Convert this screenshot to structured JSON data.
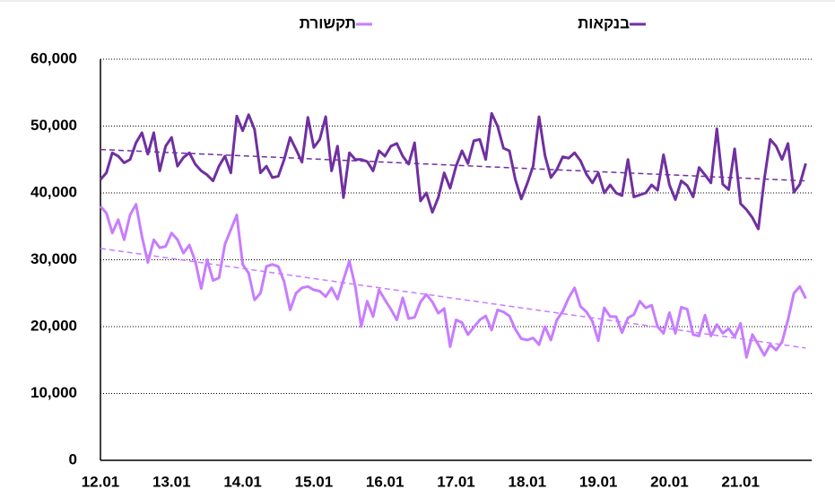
{
  "chart_data": {
    "type": "line",
    "categories": [
      "12.01",
      null,
      null,
      null,
      null,
      null,
      null,
      null,
      null,
      null,
      null,
      null,
      "13.01",
      null,
      null,
      null,
      null,
      null,
      null,
      null,
      null,
      null,
      null,
      null,
      "14.01",
      null,
      null,
      null,
      null,
      null,
      null,
      null,
      null,
      null,
      null,
      null,
      "15.01",
      null,
      null,
      null,
      null,
      null,
      null,
      null,
      null,
      null,
      null,
      null,
      "16.01",
      null,
      null,
      null,
      null,
      null,
      null,
      null,
      null,
      null,
      null,
      null,
      "17.01",
      null,
      null,
      null,
      null,
      null,
      null,
      null,
      null,
      null,
      null,
      null,
      "18.01",
      null,
      null,
      null,
      null,
      null,
      null,
      null,
      null,
      null,
      null,
      null,
      "19.01",
      null,
      null,
      null,
      null,
      null,
      null,
      null,
      null,
      null,
      null,
      null,
      "20.01",
      null,
      null,
      null,
      null,
      null,
      null,
      null,
      null,
      null,
      null,
      null,
      "21.01",
      null,
      null,
      null,
      null,
      null,
      null,
      null,
      null,
      null,
      null,
      null
    ],
    "series": [
      {
        "name": "בנקאות",
        "color": "#7030a0",
        "trend": [
          46500,
          41800
        ],
        "values": [
          42000,
          43000,
          46000,
          45500,
          44500,
          45000,
          47500,
          49000,
          45800,
          49000,
          43300,
          47000,
          48300,
          44000,
          45300,
          46000,
          44300,
          43300,
          42700,
          41800,
          44000,
          45500,
          43000,
          51500,
          49300,
          51700,
          49500,
          43000,
          44000,
          42300,
          42500,
          45000,
          48300,
          46500,
          44600,
          51300,
          46800,
          48000,
          51400,
          43300,
          47000,
          39300,
          46000,
          45000,
          45000,
          44700,
          43300,
          46300,
          45500,
          47000,
          47400,
          45500,
          44300,
          47500,
          38800,
          40000,
          37100,
          39300,
          43000,
          40700,
          44000,
          46300,
          44400,
          47800,
          48000,
          45000,
          51900,
          50000,
          46700,
          46300,
          42000,
          39100,
          41400,
          44000,
          51400,
          45600,
          42300,
          43500,
          45400,
          45200,
          46000,
          44800,
          42800,
          41500,
          43000,
          40000,
          41200,
          40000,
          39600,
          45000,
          39400,
          39700,
          40000,
          41200,
          40400,
          45700,
          41200,
          39000,
          41800,
          41100,
          39400,
          43800,
          42700,
          41500,
          49600,
          41300,
          40500,
          46600,
          38400,
          37500,
          36300,
          34600,
          42000,
          48000,
          47000,
          45000,
          47400,
          40100,
          41300,
          44400
        ]
      },
      {
        "name": "תקשורת",
        "color": "#c77dff",
        "trend": [
          31700,
          16800
        ],
        "values": [
          38000,
          37000,
          34000,
          36000,
          33000,
          36700,
          38300,
          33500,
          29600,
          33000,
          31800,
          32000,
          34000,
          33000,
          31000,
          32200,
          29800,
          25700,
          30000,
          26900,
          27300,
          32300,
          34500,
          36700,
          29300,
          28000,
          24000,
          25000,
          29000,
          29300,
          29000,
          26700,
          22500,
          25000,
          25800,
          26000,
          25500,
          25300,
          24500,
          25800,
          24100,
          27000,
          29800,
          26000,
          20000,
          23800,
          21500,
          25500,
          24000,
          22600,
          21000,
          24300,
          21200,
          21400,
          23700,
          24800,
          23700,
          22000,
          22700,
          17000,
          21000,
          20600,
          18800,
          19900,
          21000,
          21600,
          19500,
          22500,
          22200,
          21600,
          19600,
          18200,
          18000,
          18300,
          17300,
          20000,
          18000,
          21000,
          22300,
          24300,
          25800,
          23000,
          22200,
          20800,
          17900,
          22800,
          21500,
          21500,
          19100,
          21300,
          21800,
          23800,
          22800,
          23200,
          20000,
          19000,
          22100,
          19000,
          22900,
          22600,
          18800,
          18600,
          21700,
          18600,
          20300,
          19000,
          19700,
          18500,
          20500,
          15400,
          18800,
          17300,
          15700,
          17300,
          16500,
          17700,
          21000,
          25000,
          26000,
          24200
        ]
      }
    ],
    "ylim": [
      0,
      60000
    ],
    "yticks": [
      0,
      {
        "value": 10000,
        "label": "10,000"
      },
      {
        "value": 20000,
        "label": "20,000"
      },
      {
        "value": 30000,
        "label": "30,000"
      },
      {
        "value": 40000,
        "label": "40,000"
      },
      {
        "value": 50000,
        "label": "50,000"
      },
      {
        "value": 60000,
        "label": "60,000"
      }
    ],
    "grid": true
  }
}
